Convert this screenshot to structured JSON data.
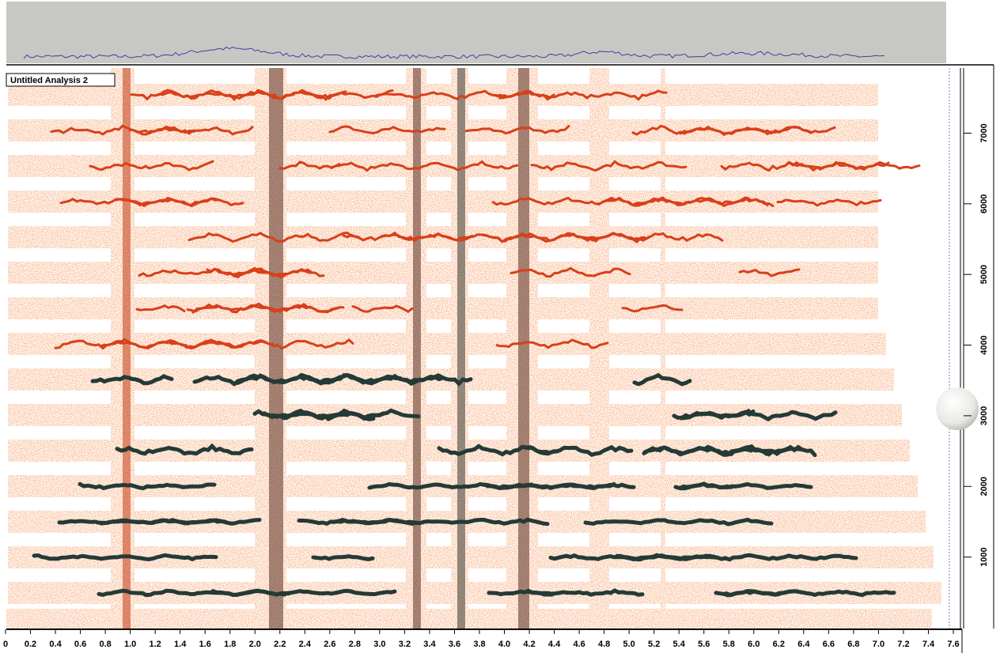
{
  "window_title": "Untitled Analysis 2",
  "x_axis": {
    "xlim": [
      0,
      7.6
    ],
    "xticks": [
      0,
      0.2,
      0.4,
      0.6,
      0.8,
      {
        "value": 1,
        "label": "1.0"
      },
      1.2,
      1.4,
      1.6,
      1.8,
      {
        "value": 2,
        "label": "2.0"
      },
      2.2,
      2.4,
      2.6,
      2.8,
      {
        "value": 3,
        "label": "3.0"
      },
      3.2,
      3.4,
      3.6,
      3.8,
      {
        "value": 4,
        "label": "4.0"
      },
      4.2,
      4.4,
      4.6,
      4.8,
      {
        "value": 5,
        "label": "5.0"
      },
      5.2,
      5.4,
      5.6,
      5.8,
      {
        "value": 6,
        "label": "6.0"
      },
      6.2,
      6.4,
      6.6,
      6.8,
      {
        "value": 7,
        "label": "7.0"
      },
      7.2,
      7.4,
      7.6
    ]
  },
  "y_axis": {
    "ylim": [
      0,
      7900
    ],
    "yticks": [
      1000,
      2000,
      3000,
      4000,
      5000,
      6000,
      7000
    ]
  }
}
